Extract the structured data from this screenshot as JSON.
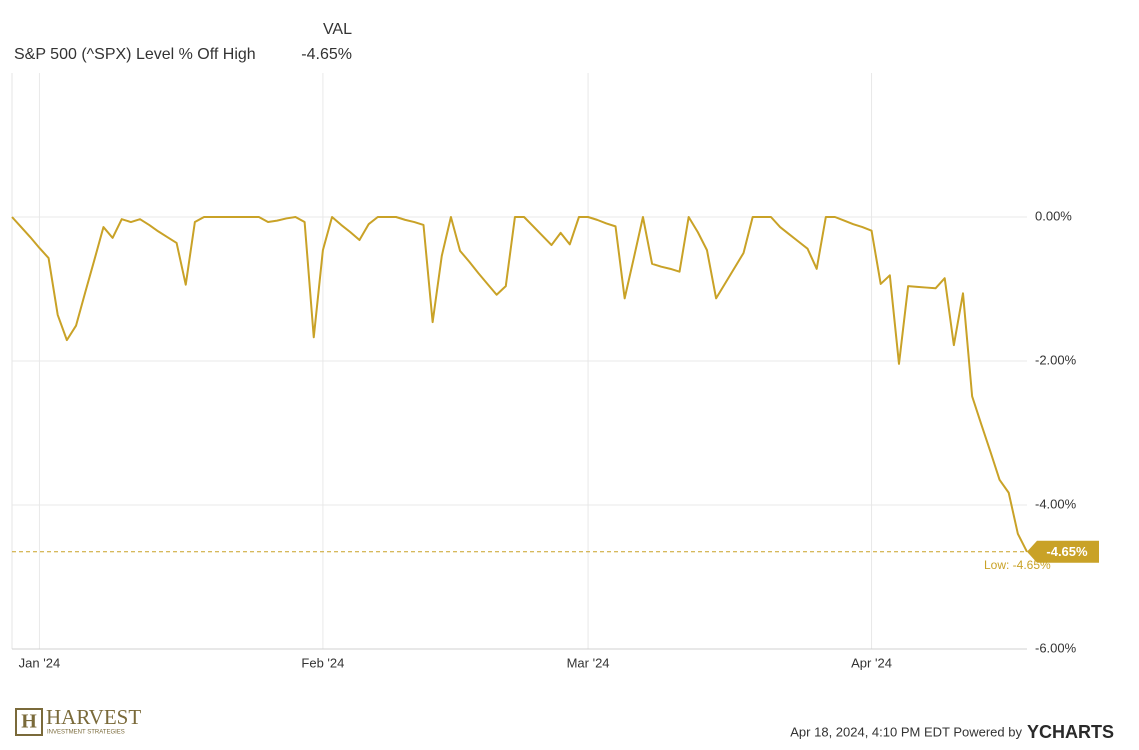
{
  "chart_data": {
    "type": "line",
    "legend_header": "VAL",
    "legend_value": "-4.65%",
    "series": [
      {
        "name": "S&P 500 (^SPX) Level % Off High",
        "color": "#c9a227",
        "values": [
          0,
          -0.14,
          -0.28,
          -0.43,
          -0.57,
          -1.36,
          -1.71,
          -1.51,
          -1.05,
          -0.6,
          -0.14,
          -0.29,
          -0.03,
          -0.07,
          -0.03,
          -0.11,
          -0.2,
          -0.28,
          -0.36,
          -0.94,
          -0.07,
          0,
          0,
          0,
          0,
          0,
          0,
          0,
          -0.07,
          -0.05,
          -0.02,
          0,
          -0.07,
          -1.67,
          -0.46,
          0,
          -0.11,
          -0.21,
          -0.32,
          -0.1,
          0,
          0,
          0,
          -0.04,
          -0.07,
          -0.11,
          -1.46,
          -0.54,
          0,
          -0.47,
          -0.62,
          -0.78,
          -0.93,
          -1.08,
          -0.96,
          0,
          0,
          -0.13,
          -0.26,
          -0.39,
          -0.22,
          -0.38,
          0,
          0,
          -0.04,
          -0.09,
          -0.13,
          -1.13,
          -0.57,
          0,
          -0.65,
          -0.69,
          -0.72,
          -0.76,
          0,
          -0.21,
          -0.46,
          -1.13,
          -0.92,
          -0.71,
          -0.5,
          0,
          0,
          0,
          -0.14,
          -0.24,
          -0.34,
          -0.44,
          -0.72,
          0,
          0,
          -0.05,
          -0.1,
          -0.14,
          -0.19,
          -0.93,
          -0.81,
          -2.04,
          -0.96,
          -0.97,
          -0.98,
          -0.99,
          -0.85,
          -1.78,
          -1.06,
          -2.49,
          -2.88,
          -3.26,
          -3.65,
          -3.83,
          -4.4,
          -4.65
        ]
      }
    ],
    "xlim": [
      0,
      111
    ],
    "xticks": [
      {
        "value": 3,
        "label": "Jan '24"
      },
      {
        "value": 34,
        "label": "Feb '24"
      },
      {
        "value": 63,
        "label": "Mar '24"
      },
      {
        "value": 94,
        "label": "Apr '24"
      }
    ],
    "ylim": [
      -6,
      2
    ],
    "yticks": [
      {
        "value": 0,
        "label": "0.00%"
      },
      {
        "value": -2,
        "label": "-2.00%"
      },
      {
        "value": -4,
        "label": "-4.00%"
      },
      {
        "value": -6,
        "label": "-6.00%"
      }
    ],
    "grid": true,
    "low_line": -4.65,
    "end_label": "-4.65%",
    "low_annotation": "Low: -4.65%"
  },
  "footer": {
    "logo_name": "HARVEST",
    "logo_tagline": "INVESTMENT STRATEGIES",
    "timestamp": "Apr 18, 2024, 4:10 PM EDT Powered by",
    "brand": "YCHARTS"
  }
}
